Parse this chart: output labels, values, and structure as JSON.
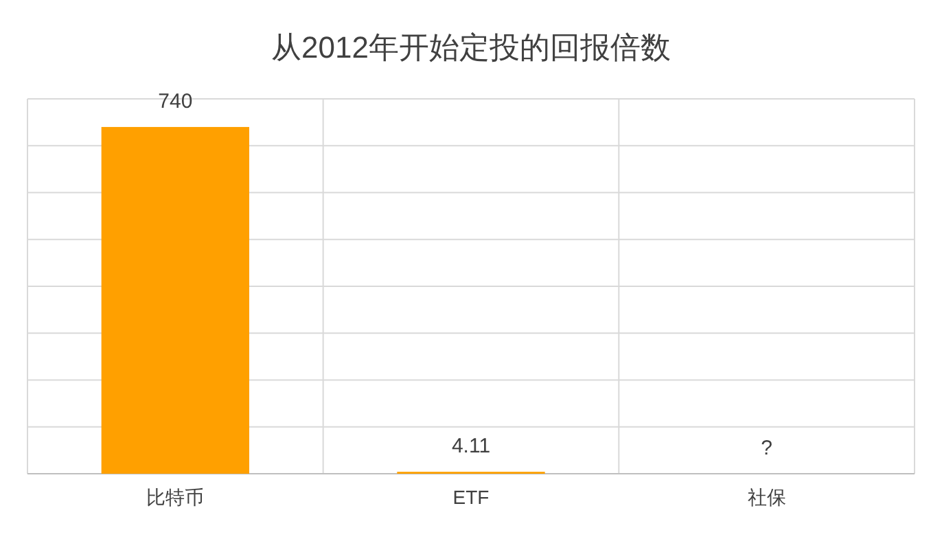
{
  "chart_data": {
    "type": "bar",
    "title": "从2012年开始定投的回报倍数",
    "categories": [
      "比特币",
      "ETF",
      "社保"
    ],
    "values": [
      740,
      4.11,
      null
    ],
    "value_labels": [
      "740",
      "4.11",
      "?"
    ],
    "color": "#ffa000",
    "ylim": [
      0,
      800
    ],
    "yticks": [
      {
        "value": 0,
        "label": null
      },
      {
        "value": 100,
        "label": null
      },
      {
        "value": 200,
        "label": null
      },
      {
        "value": 300,
        "label": null
      },
      {
        "value": 400,
        "label": null
      },
      {
        "value": 500,
        "label": null
      },
      {
        "value": 600,
        "label": null
      },
      {
        "value": 700,
        "label": null
      },
      {
        "value": 800,
        "label": null
      }
    ],
    "grid": true
  }
}
